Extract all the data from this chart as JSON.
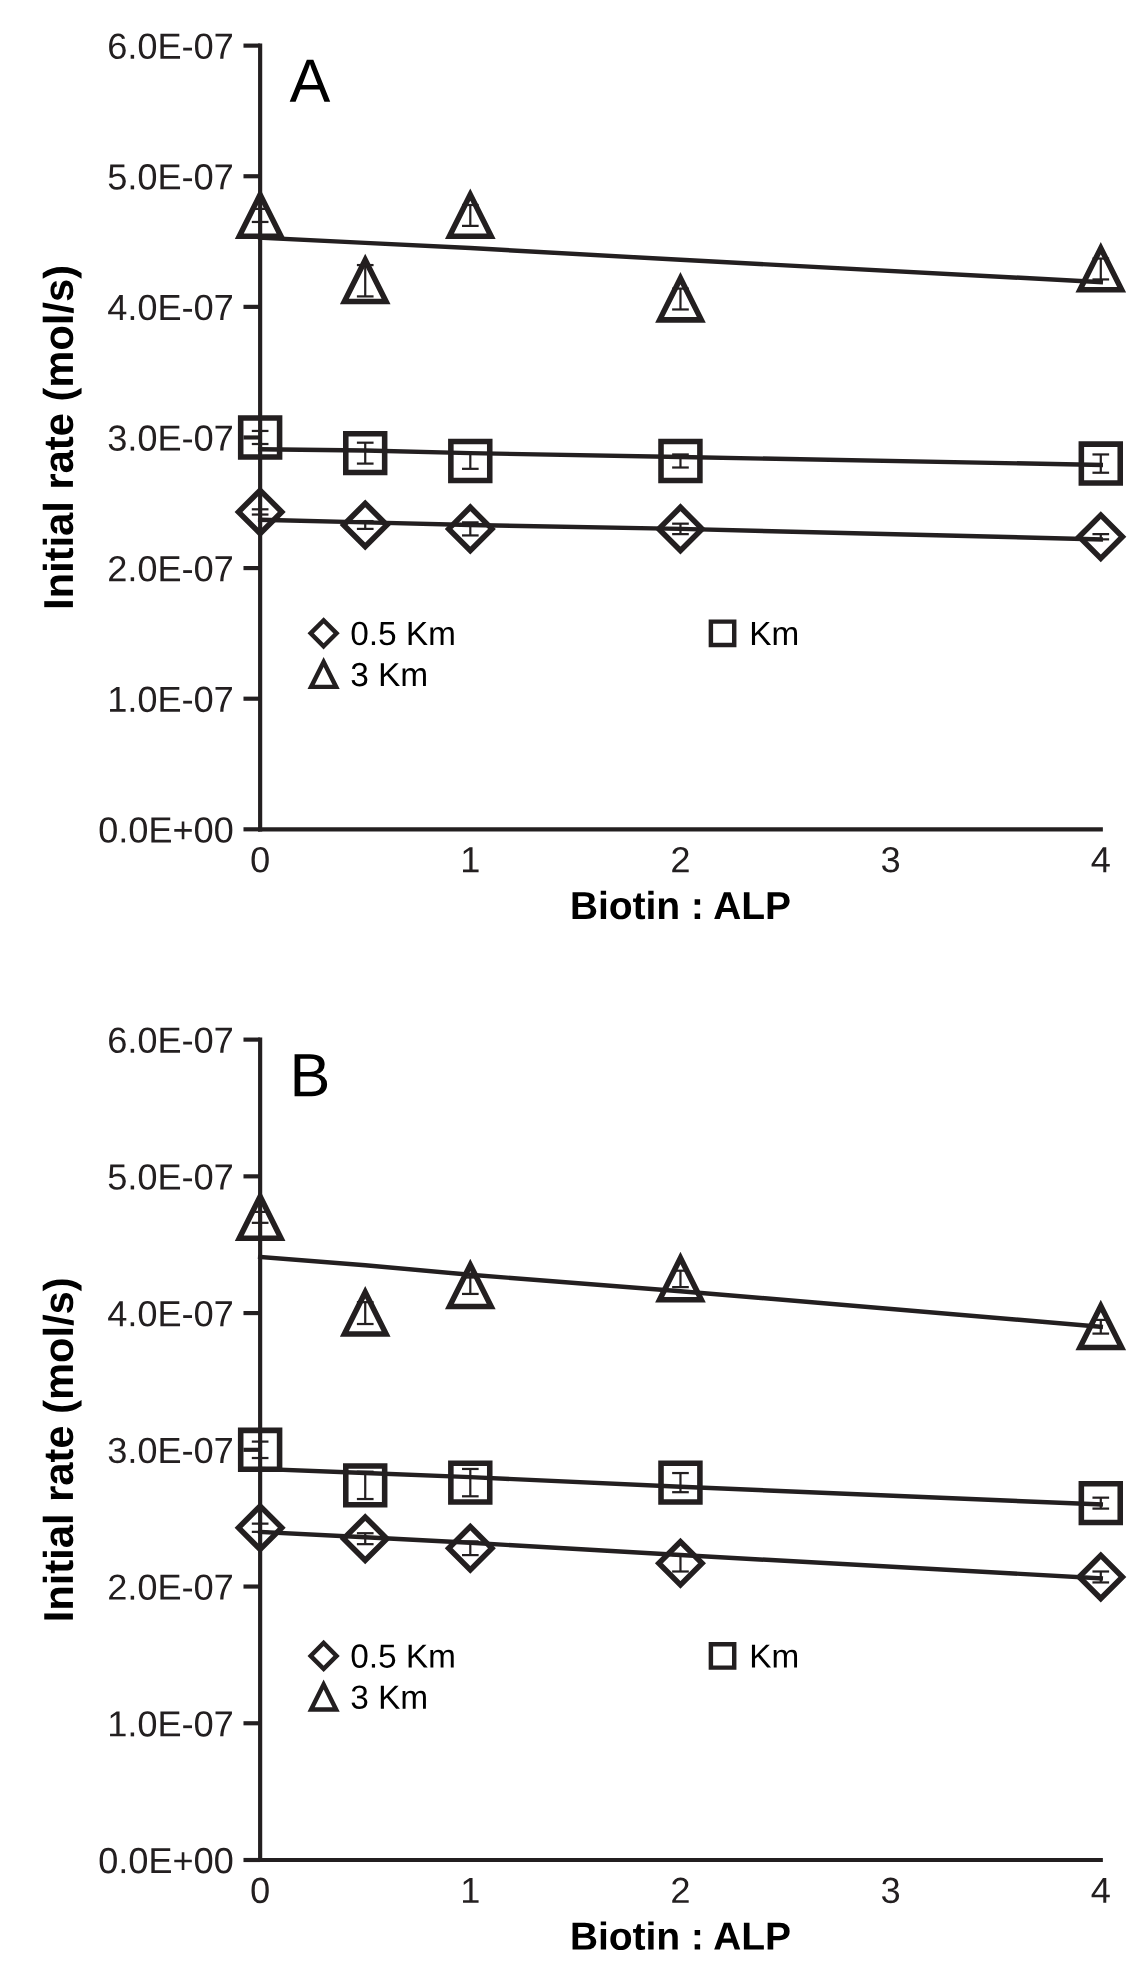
{
  "chart_data": [
    {
      "type": "scatter",
      "annotations": [
        "A"
      ],
      "xlabel": "Biotin : ALP",
      "ylabel": "Initial rate (mol/s)",
      "x": [
        0,
        0.5,
        1,
        2,
        4
      ],
      "xlim": [
        0,
        4
      ],
      "xticks": [
        0,
        1,
        2,
        3,
        4
      ],
      "ylim": [
        0,
        6e-07
      ],
      "yticks": [
        {
          "value": 0,
          "label": "0.0E+00"
        },
        {
          "value": 1e-07,
          "label": "1.0E-07"
        },
        {
          "value": 2e-07,
          "label": "2.0E-07"
        },
        {
          "value": 3e-07,
          "label": "3.0E-07"
        },
        {
          "value": 4e-07,
          "label": "4.0E-07"
        },
        {
          "value": 5e-07,
          "label": "5.0E-07"
        },
        {
          "value": 6e-07,
          "label": "6.0E-07"
        }
      ],
      "legend": "left",
      "grid": false,
      "series": [
        {
          "name": "0.5 Km",
          "marker": "diamond",
          "color": "#231f20",
          "values": [
            2.43e-07,
            2.33e-07,
            2.3e-07,
            2.3e-07,
            2.24e-07
          ],
          "errors": [
            2e-09,
            3e-09,
            5e-09,
            4e-09,
            2e-09
          ]
        },
        {
          "name": "Km",
          "marker": "square",
          "color": "#231f20",
          "values": [
            3e-07,
            2.88e-07,
            2.82e-07,
            2.82e-07,
            2.8e-07
          ],
          "errors": [
            5e-09,
            8e-09,
            6e-09,
            5e-09,
            7e-09
          ]
        },
        {
          "name": "3 Km",
          "marker": "triangle",
          "color": "#231f20",
          "values": [
            4.7e-07,
            4.2e-07,
            4.7e-07,
            4.06e-07,
            4.29e-07
          ],
          "errors": [
            5e-09,
            1.2e-08,
            8e-09,
            8e-09,
            8e-09
          ]
        },
        {
          "type": "line",
          "color": "#231f20",
          "values": [
            2.37e-07,
            2.35e-07,
            2.33e-07,
            2.3e-07,
            2.22e-07
          ]
        },
        {
          "type": "line",
          "color": "#231f20",
          "values": [
            2.91e-07,
            2.9e-07,
            2.88e-07,
            2.85e-07,
            2.79e-07
          ]
        },
        {
          "type": "line",
          "color": "#231f20",
          "values": [
            4.53e-07,
            4.49e-07,
            4.45e-07,
            4.36e-07,
            4.19e-07
          ]
        }
      ]
    },
    {
      "type": "scatter",
      "annotations": [
        "B"
      ],
      "xlabel": "Biotin : ALP",
      "ylabel": "Initial rate (mol/s)",
      "x": [
        0,
        0.5,
        1,
        2,
        4
      ],
      "xlim": [
        0,
        4
      ],
      "xticks": [
        0,
        1,
        2,
        3,
        4
      ],
      "ylim": [
        0,
        6e-07
      ],
      "yticks": [
        {
          "value": 0,
          "label": "0.0E+00"
        },
        {
          "value": 1e-07,
          "label": "1.0E-07"
        },
        {
          "value": 2e-07,
          "label": "2.0E-07"
        },
        {
          "value": 3e-07,
          "label": "3.0E-07"
        },
        {
          "value": 4e-07,
          "label": "4.0E-07"
        },
        {
          "value": 5e-07,
          "label": "5.0E-07"
        },
        {
          "value": 6e-07,
          "label": "6.0E-07"
        }
      ],
      "legend": "left",
      "grid": false,
      "series": [
        {
          "name": "0.5 Km",
          "marker": "diamond",
          "color": "#231f20",
          "values": [
            2.43e-07,
            2.35e-07,
            2.28e-07,
            2.17e-07,
            2.07e-07
          ],
          "errors": [
            3e-09,
            4e-09,
            5e-09,
            6e-09,
            4e-09
          ]
        },
        {
          "name": "Km",
          "marker": "square",
          "color": "#231f20",
          "values": [
            3e-07,
            2.74e-07,
            2.76e-07,
            2.76e-07,
            2.61e-07
          ],
          "errors": [
            6e-09,
            1e-08,
            1e-08,
            7e-09,
            4e-09
          ]
        },
        {
          "name": "3 Km",
          "marker": "triangle",
          "color": "#231f20",
          "values": [
            4.7e-07,
            4e-07,
            4.2e-07,
            4.25e-07,
            3.9e-07
          ],
          "errors": [
            4e-09,
            8e-09,
            6e-09,
            6e-09,
            5e-09
          ]
        },
        {
          "type": "line",
          "color": "#231f20",
          "values": [
            2.4e-07,
            2.36e-07,
            2.32e-07,
            2.23e-07,
            2.06e-07
          ]
        },
        {
          "type": "line",
          "color": "#231f20",
          "values": [
            2.86e-07,
            2.83e-07,
            2.8e-07,
            2.73e-07,
            2.6e-07
          ]
        },
        {
          "type": "line",
          "color": "#231f20",
          "values": [
            4.41e-07,
            4.35e-07,
            4.28e-07,
            4.16e-07,
            3.9e-07
          ]
        }
      ]
    }
  ]
}
